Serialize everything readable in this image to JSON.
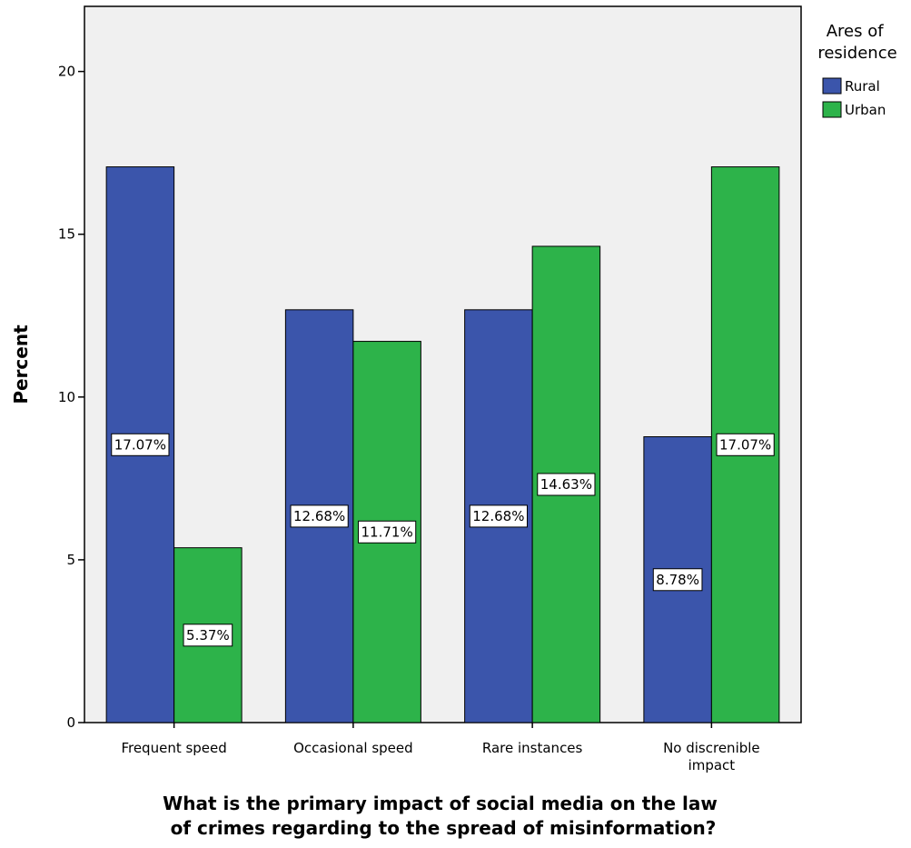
{
  "chart_data": {
    "type": "bar",
    "categories": [
      [
        "Frequent speed"
      ],
      [
        "Occasional speed"
      ],
      [
        "Rare instances"
      ],
      [
        "No discrenible",
        "impact"
      ]
    ],
    "series": [
      {
        "name": "Rural",
        "values": [
          17.07,
          12.68,
          12.68,
          8.78
        ],
        "labels": [
          "17.07%",
          "12.68%",
          "12.68%",
          "8.78%"
        ],
        "color": "#3b55ab"
      },
      {
        "name": "Urban",
        "values": [
          5.37,
          11.71,
          14.63,
          17.07
        ],
        "labels": [
          "5.37%",
          "11.71%",
          "14.63%",
          "17.07%"
        ],
        "color": "#2db34a"
      }
    ],
    "ylabel": "Percent",
    "xlabel_lines": [
      "What is the primary impact of social media on the law",
      "of crimes regarding to the spread of misinformation?"
    ],
    "ylim": [
      0,
      22
    ],
    "yticks": [
      0,
      5,
      10,
      15,
      20
    ],
    "legend": {
      "title_lines": [
        "Ares of",
        "residence"
      ],
      "placement": "right"
    },
    "plot_background": "#f0f0f0",
    "grid": false
  }
}
